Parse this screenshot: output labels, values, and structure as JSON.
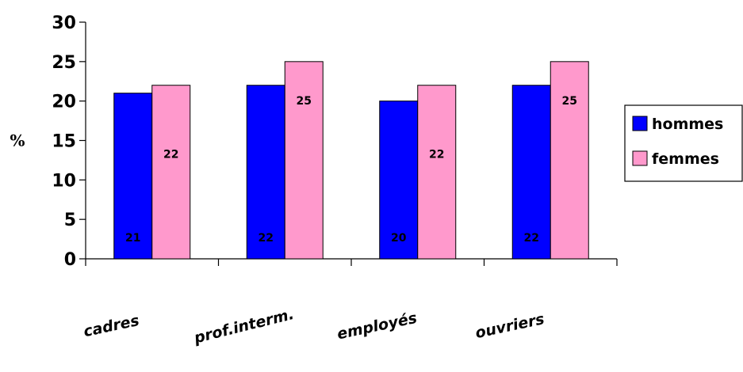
{
  "chart_data": {
    "type": "bar",
    "categories": [
      "cadres",
      "prof.interm.",
      "employés",
      "ouvriers"
    ],
    "series": [
      {
        "name": "hommes",
        "values": [
          21,
          22,
          20,
          22
        ],
        "color": "#0000ff"
      },
      {
        "name": "femmes",
        "values": [
          22,
          25,
          22,
          25
        ],
        "color": "#ff99cc"
      }
    ],
    "title": "",
    "xlabel": "",
    "ylabel": "%",
    "ylim": [
      0,
      30
    ],
    "yticks": [
      0,
      5,
      10,
      15,
      20,
      25,
      30
    ],
    "grid": false,
    "legend_position": "right"
  }
}
